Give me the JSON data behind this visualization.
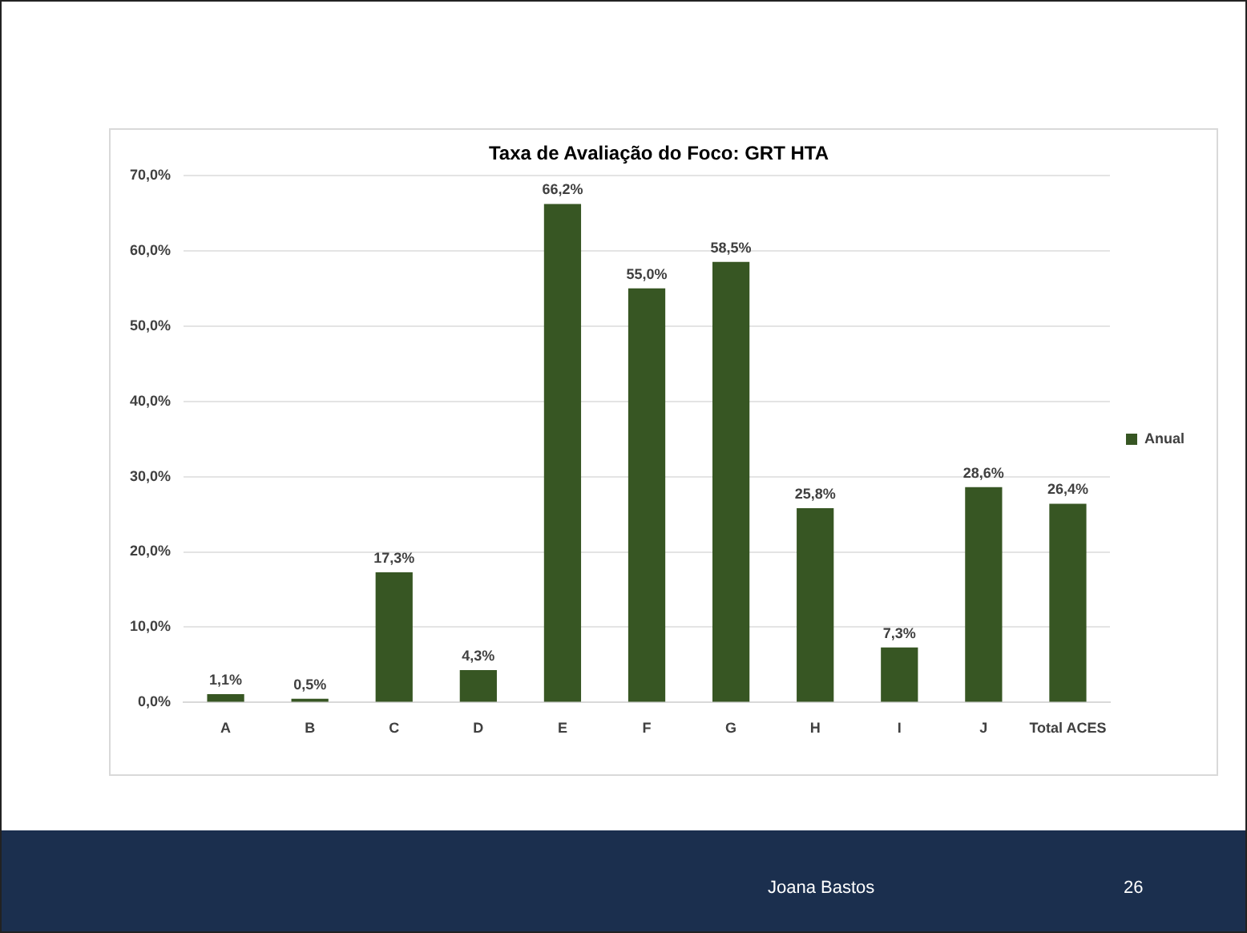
{
  "chart_data": {
    "type": "bar",
    "title": "Taxa de Avaliação do Foco: GRT HTA",
    "categories": [
      "A",
      "B",
      "C",
      "D",
      "E",
      "F",
      "G",
      "H",
      "I",
      "J",
      "Total ACES"
    ],
    "series": [
      {
        "name": "Anual",
        "color": "#375623",
        "values": [
          1.1,
          0.5,
          17.3,
          4.3,
          66.2,
          55.0,
          58.5,
          25.8,
          7.3,
          28.6,
          26.4
        ],
        "value_labels": [
          "1,1%",
          "0,5%",
          "17,3%",
          "4,3%",
          "66,2%",
          "55,0%",
          "58,5%",
          "25,8%",
          "7,3%",
          "28,6%",
          "26,4%"
        ]
      }
    ],
    "ylim": [
      0,
      70
    ],
    "yticks": [
      {
        "value": 0,
        "label": "0,0%"
      },
      {
        "value": 10,
        "label": "10,0%"
      },
      {
        "value": 20,
        "label": "20,0%"
      },
      {
        "value": 30,
        "label": "30,0%"
      },
      {
        "value": 40,
        "label": "40,0%"
      },
      {
        "value": 50,
        "label": "50,0%"
      },
      {
        "value": 60,
        "label": "60,0%"
      },
      {
        "value": 70,
        "label": "70,0%"
      }
    ],
    "grid": "y",
    "legend": "right",
    "annotations": [
      "Joana Bastos",
      "26"
    ]
  }
}
